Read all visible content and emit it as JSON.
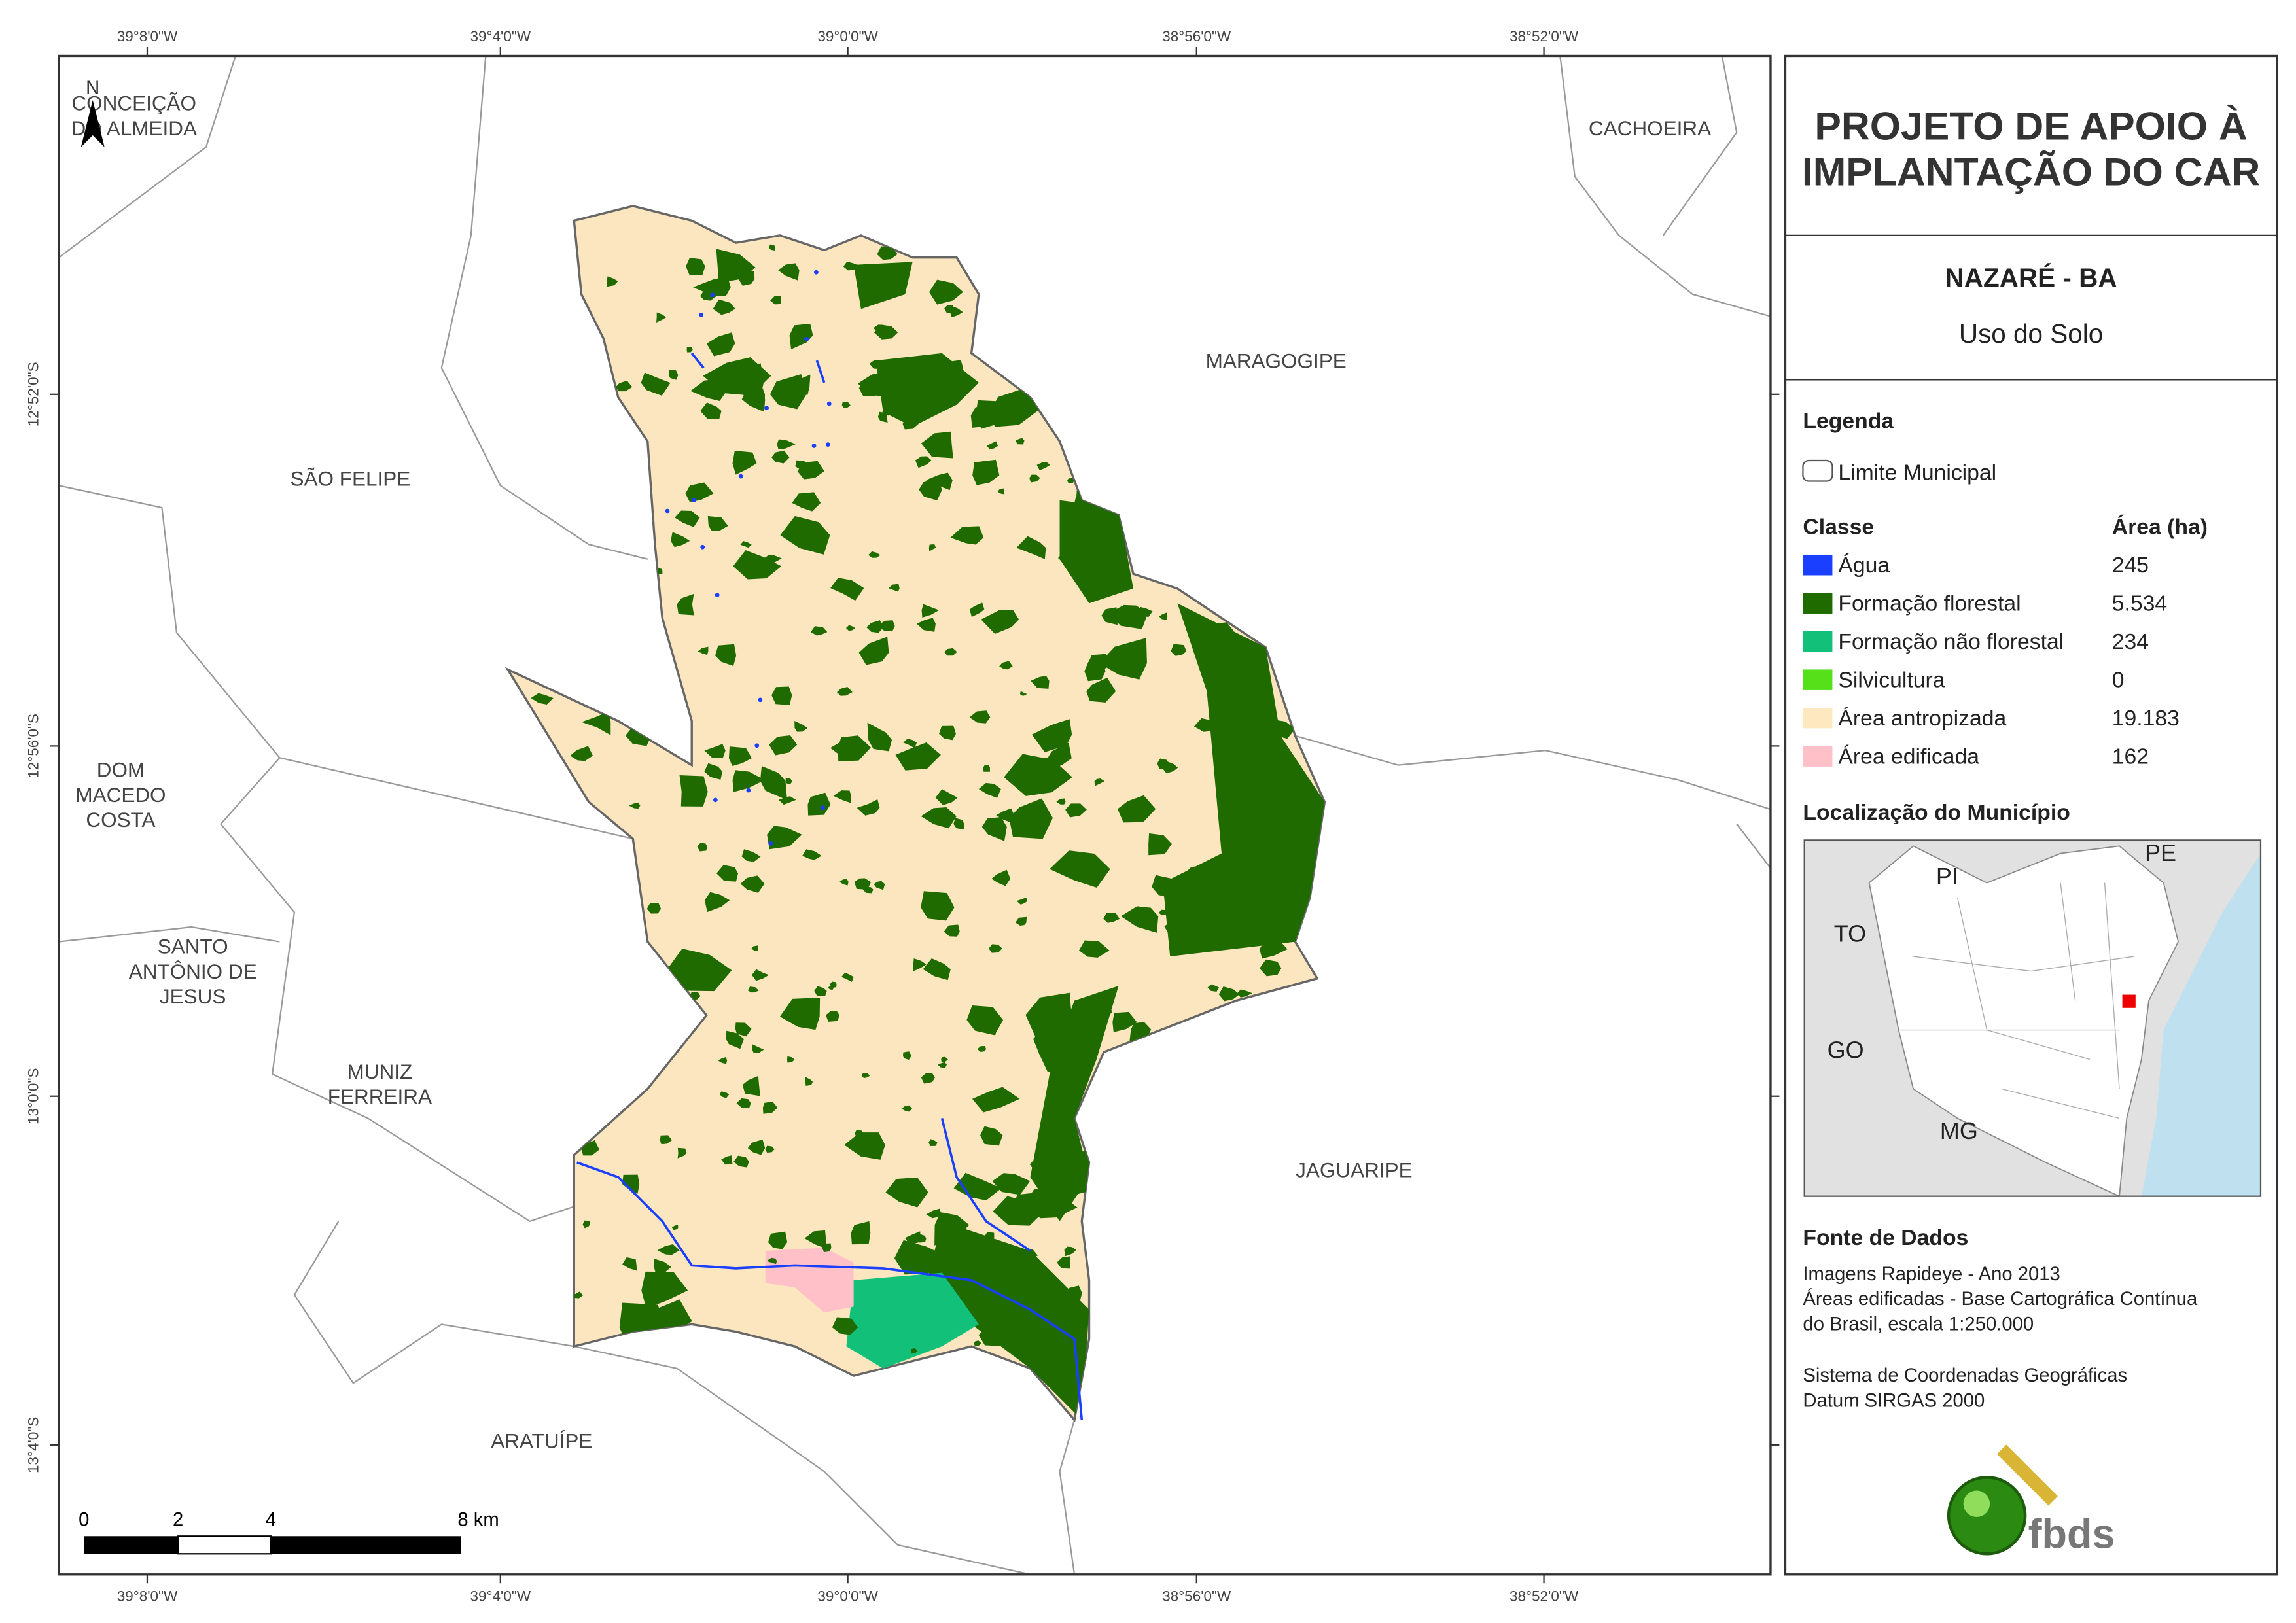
{
  "map": {
    "lon_labels": [
      "39°8'0\"W",
      "39°4'0\"W",
      "39°0'0\"W",
      "38°56'0\"W",
      "38°52'0\"W"
    ],
    "lat_labels": [
      "12°52'0\"S",
      "12°56'0\"S",
      "13°0'0\"S",
      "13°4'0\"S"
    ],
    "north": "N",
    "places": [
      {
        "lines": [
          "CONCEIÇÃO",
          "DO ALMEIDA"
        ]
      },
      {
        "lines": [
          "CACHOEIRA"
        ]
      },
      {
        "lines": [
          "MARAGOGIPE"
        ]
      },
      {
        "lines": [
          "SÃO FELIPE"
        ]
      },
      {
        "lines": [
          "DOM",
          "MACEDO",
          "COSTA"
        ]
      },
      {
        "lines": [
          "SANTO",
          "ANTÔNIO DE",
          "JESUS"
        ]
      },
      {
        "lines": [
          "MUNIZ",
          "FERREIRA"
        ]
      },
      {
        "lines": [
          "JAGUARIPE"
        ]
      },
      {
        "lines": [
          "ARATUÍPE"
        ]
      }
    ],
    "scale_labels": [
      "0",
      "2",
      "4",
      "8 km"
    ]
  },
  "panel": {
    "title_lines": [
      "PROJETO DE APOIO À",
      "IMPLANTAÇÃO DO CAR"
    ],
    "municipality": "NAZARÉ - BA",
    "subtitle": "Uso do Solo",
    "legend": {
      "heading": "Legenda",
      "boundary": "Limite Municipal",
      "class_header": "Classe",
      "area_header": "Área (ha)",
      "rows": [
        {
          "class": "Água",
          "area": "245"
        },
        {
          "class": "Formação florestal",
          "area": "5.534"
        },
        {
          "class": "Formação não florestal",
          "area": "234"
        },
        {
          "class": "Silvicultura",
          "area": "0"
        },
        {
          "class": "Área antropizada",
          "area": "19.183"
        },
        {
          "class": "Área edificada",
          "area": "162"
        }
      ]
    },
    "location": {
      "heading": "Localização do Município",
      "states": [
        "PI",
        "PE",
        "TO",
        "GO",
        "MG"
      ]
    },
    "sources": {
      "heading": "Fonte de Dados",
      "lines": [
        "Imagens Rapideye - Ano 2013",
        "Áreas edificadas - Base Cartográfica Contínua",
        "do Brasil, escala 1:250.000",
        "Sistema de Coordenadas Geográficas",
        "Datum SIRGAS 2000"
      ]
    },
    "logo": "fbds"
  }
}
